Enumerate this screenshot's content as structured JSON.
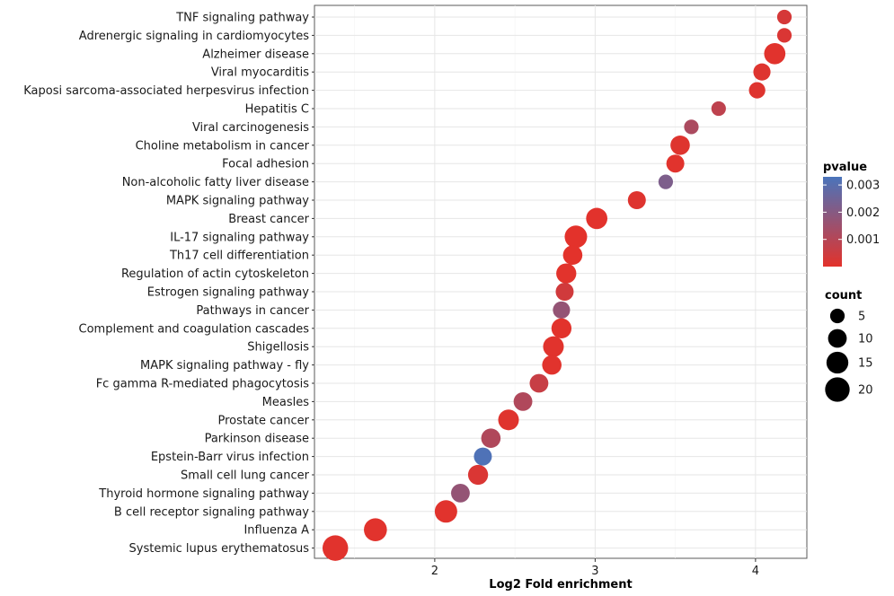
{
  "chart_data": {
    "type": "scatter",
    "xlabel": "Log2 Fold enrichment",
    "ylabel": "",
    "xlim": [
      1.25,
      4.32
    ],
    "xticks": [
      2,
      3,
      4
    ],
    "grid": true,
    "points": [
      {
        "term": "TNF signaling pathway",
        "x": 4.18,
        "pvalue": 0.0003,
        "count": 5
      },
      {
        "term": "Adrenergic signaling in cardiomyocytes",
        "x": 4.18,
        "pvalue": 0.0002,
        "count": 5
      },
      {
        "term": "Alzheimer disease",
        "x": 4.12,
        "pvalue": 5e-05,
        "count": 14
      },
      {
        "term": "Viral myocarditis",
        "x": 4.04,
        "pvalue": 0.0001,
        "count": 8
      },
      {
        "term": "Kaposi sarcoma-associated herpesvirus infection",
        "x": 4.01,
        "pvalue": 0.0001,
        "count": 7
      },
      {
        "term": "Hepatitis C",
        "x": 3.77,
        "pvalue": 0.0008,
        "count": 5
      },
      {
        "term": "Viral carcinogenesis",
        "x": 3.6,
        "pvalue": 0.0012,
        "count": 5
      },
      {
        "term": "Choline metabolism in cancer",
        "x": 3.53,
        "pvalue": 0.0001,
        "count": 11
      },
      {
        "term": "Focal adhesion",
        "x": 3.5,
        "pvalue": 5e-05,
        "count": 9
      },
      {
        "term": "Non-alcoholic fatty liver disease",
        "x": 3.44,
        "pvalue": 0.0022,
        "count": 5
      },
      {
        "term": "MAPK signaling pathway",
        "x": 3.26,
        "pvalue": 0.0001,
        "count": 9
      },
      {
        "term": "Breast cancer",
        "x": 3.01,
        "pvalue": 2e-05,
        "count": 14
      },
      {
        "term": "IL-17 signaling pathway",
        "x": 2.88,
        "pvalue": 1e-05,
        "count": 16
      },
      {
        "term": "Th17 cell differentiation",
        "x": 2.86,
        "pvalue": 1e-05,
        "count": 11
      },
      {
        "term": "Regulation of actin cytoskeleton",
        "x": 2.82,
        "pvalue": 3e-05,
        "count": 12
      },
      {
        "term": "Estrogen signaling pathway",
        "x": 2.81,
        "pvalue": 0.0004,
        "count": 9
      },
      {
        "term": "Pathways in cancer",
        "x": 2.79,
        "pvalue": 0.0017,
        "count": 8
      },
      {
        "term": "Complement and coagulation cascades",
        "x": 2.79,
        "pvalue": 3e-05,
        "count": 12
      },
      {
        "term": "Shigellosis",
        "x": 2.74,
        "pvalue": 5e-05,
        "count": 13
      },
      {
        "term": "MAPK signaling pathway - fly",
        "x": 2.73,
        "pvalue": 5e-05,
        "count": 11
      },
      {
        "term": "Fc gamma R-mediated phagocytosis",
        "x": 2.65,
        "pvalue": 0.0006,
        "count": 10
      },
      {
        "term": "Measles",
        "x": 2.55,
        "pvalue": 0.0011,
        "count": 10
      },
      {
        "term": "Prostate cancer",
        "x": 2.46,
        "pvalue": 8e-05,
        "count": 13
      },
      {
        "term": "Parkinson disease",
        "x": 2.35,
        "pvalue": 0.0011,
        "count": 11
      },
      {
        "term": "Epstein-Barr virus infection",
        "x": 2.3,
        "pvalue": 0.0032,
        "count": 9
      },
      {
        "term": "Small cell lung cancer",
        "x": 2.27,
        "pvalue": 0.0002,
        "count": 12
      },
      {
        "term": "Thyroid hormone signaling pathway",
        "x": 2.16,
        "pvalue": 0.0017,
        "count": 10
      },
      {
        "term": "B cell receptor signaling pathway",
        "x": 2.07,
        "pvalue": 5e-05,
        "count": 16
      },
      {
        "term": "Influenza A",
        "x": 1.63,
        "pvalue": 5e-05,
        "count": 17
      },
      {
        "term": "Systemic lupus erythematosus",
        "x": 1.38,
        "pvalue": 5e-05,
        "count": 22
      }
    ],
    "legend": {
      "placement": "right",
      "color_title": "pvalue",
      "color_scale": {
        "low_color": "#E3322B",
        "high_color": "#4A74BB",
        "min": 0,
        "max": 0.0033
      },
      "color_ticks": [
        {
          "value": 0.003,
          "label": "0.003"
        },
        {
          "value": 0.002,
          "label": "0.002"
        },
        {
          "value": 0.001,
          "label": "0.001"
        }
      ],
      "size_title": "count",
      "size_entries": [
        5,
        10,
        15,
        20
      ]
    }
  }
}
